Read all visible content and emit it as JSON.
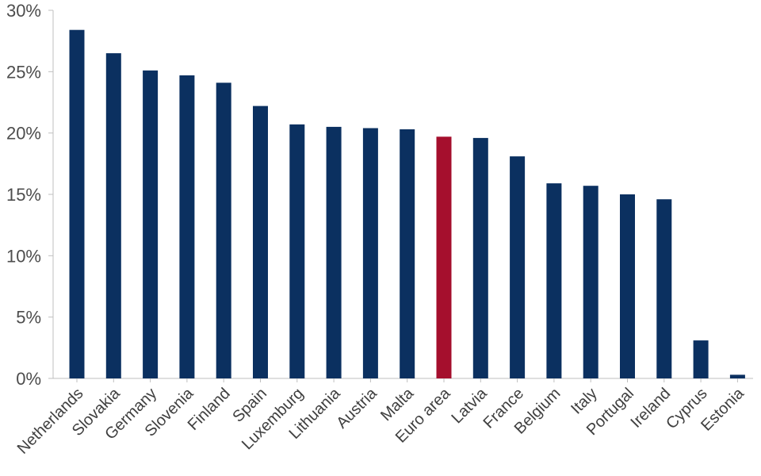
{
  "chart_data": {
    "type": "bar",
    "title": "",
    "xlabel": "",
    "ylabel": "",
    "categories": [
      "Netherlands",
      "Slovakia",
      "Germany",
      "Slovenia",
      "Finland",
      "Spain",
      "Luxemburg",
      "Lithuania",
      "Austria",
      "Malta",
      "Euro area",
      "Latvia",
      "France",
      "Belgium",
      "Italy",
      "Portugal",
      "Ireland",
      "Cyprus",
      "Estonia"
    ],
    "series": [
      {
        "values": [
          28.4,
          26.5,
          25.1,
          24.7,
          24.1,
          22.2,
          20.7,
          20.5,
          20.4,
          20.3,
          19.7,
          19.6,
          18.1,
          15.9,
          15.7,
          15.0,
          14.6,
          3.1,
          0.3
        ]
      }
    ],
    "highlight_category": "Euro area",
    "ylim": [
      0,
      30
    ],
    "y_ticks": [
      0,
      5,
      10,
      15,
      20,
      25,
      30
    ],
    "y_tick_labels": [
      "0%",
      "5%",
      "10%",
      "15%",
      "20%",
      "25%",
      "30%"
    ],
    "grid": false,
    "legend": "none",
    "colors": {
      "bar": "#0b3060",
      "highlight": "#a50f2d",
      "axis": "#bfbfbf"
    }
  }
}
